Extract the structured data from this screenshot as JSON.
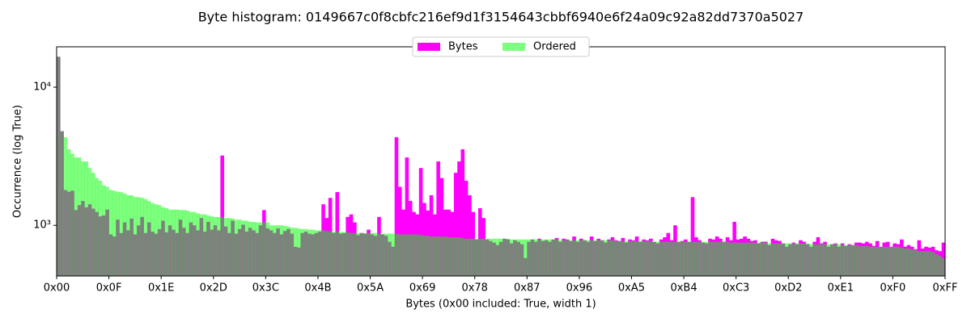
{
  "chart_data": {
    "type": "histogram",
    "title": "Byte histogram: 0149667c0f8cbfc216ef9d1f3154643cbbf6940e6f24a09c92a82dd7370a5027",
    "x_label": "Bytes (0x00 included: True, width 1)",
    "y_label": "Occurrence (log True)",
    "log_y": true,
    "legend": "upper center",
    "xlim": [
      0,
      255
    ],
    "ylim": [
      430,
      19600
    ],
    "xticks": [
      {
        "value": 0,
        "label": "0x00"
      },
      {
        "value": 15,
        "label": "0x0F"
      },
      {
        "value": 30,
        "label": "0x1E"
      },
      {
        "value": 45,
        "label": "0x2D"
      },
      {
        "value": 60,
        "label": "0x3C"
      },
      {
        "value": 75,
        "label": "0x4B"
      },
      {
        "value": 90,
        "label": "0x5A"
      },
      {
        "value": 105,
        "label": "0x69"
      },
      {
        "value": 120,
        "label": "0x78"
      },
      {
        "value": 135,
        "label": "0x87"
      },
      {
        "value": 150,
        "label": "0x96"
      },
      {
        "value": 165,
        "label": "0xA5"
      },
      {
        "value": 180,
        "label": "0xB4"
      },
      {
        "value": 195,
        "label": "0xC3"
      },
      {
        "value": 210,
        "label": "0xD2"
      },
      {
        "value": 225,
        "label": "0xE1"
      },
      {
        "value": 240,
        "label": "0xF0"
      },
      {
        "value": 255,
        "label": "0xFF"
      }
    ],
    "yticks": [
      {
        "value": 1000,
        "label": "10³"
      },
      {
        "value": 10000,
        "label": "10⁴"
      }
    ],
    "bins": [
      0,
      1,
      2,
      3,
      4,
      5,
      6,
      7,
      8,
      9,
      10,
      11,
      12,
      13,
      14,
      15,
      16,
      17,
      18,
      19,
      20,
      21,
      22,
      23,
      24,
      25,
      26,
      27,
      28,
      29,
      30,
      31,
      32,
      33,
      34,
      35,
      36,
      37,
      38,
      39,
      40,
      41,
      42,
      43,
      44,
      45,
      46,
      47,
      48,
      49,
      50,
      51,
      52,
      53,
      54,
      55,
      56,
      57,
      58,
      59,
      60,
      61,
      62,
      63,
      64,
      65,
      66,
      67,
      68,
      69,
      70,
      71,
      72,
      73,
      74,
      75,
      76,
      77,
      78,
      79,
      80,
      81,
      82,
      83,
      84,
      85,
      86,
      87,
      88,
      89,
      90,
      91,
      92,
      93,
      94,
      95,
      96,
      97,
      98,
      99,
      100,
      101,
      102,
      103,
      104,
      105,
      106,
      107,
      108,
      109,
      110,
      111,
      112,
      113,
      114,
      115,
      116,
      117,
      118,
      119,
      120,
      121,
      122,
      123,
      124,
      125,
      126,
      127,
      128,
      129,
      130,
      131,
      132,
      133,
      134,
      135,
      136,
      137,
      138,
      139,
      140,
      141,
      142,
      143,
      144,
      145,
      146,
      147,
      148,
      149,
      150,
      151,
      152,
      153,
      154,
      155,
      156,
      157,
      158,
      159,
      160,
      161,
      162,
      163,
      164,
      165,
      166,
      167,
      168,
      169,
      170,
      171,
      172,
      173,
      174,
      175,
      176,
      177,
      178,
      179,
      180,
      181,
      182,
      183,
      184,
      185,
      186,
      187,
      188,
      189,
      190,
      191,
      192,
      193,
      194,
      195,
      196,
      197,
      198,
      199,
      200,
      201,
      202,
      203,
      204,
      205,
      206,
      207,
      208,
      209,
      210,
      211,
      212,
      213,
      214,
      215,
      216,
      217,
      218,
      219,
      220,
      221,
      222,
      223,
      224,
      225,
      226,
      227,
      228,
      229,
      230,
      231,
      232,
      233,
      234,
      235,
      236,
      237,
      238,
      239,
      240,
      241,
      242,
      243,
      244,
      245,
      246,
      247,
      248,
      249,
      250,
      251,
      252,
      253,
      254,
      255,
      256
    ],
    "series": [
      {
        "name": "Bytes",
        "color": "#ff00ff",
        "opacity": 1,
        "values": [
          16600,
          4800,
          1800,
          1750,
          1780,
          1290,
          1400,
          1500,
          1350,
          1420,
          1320,
          1250,
          1160,
          1180,
          1300,
          860,
          830,
          1100,
          880,
          1050,
          920,
          1120,
          860,
          1000,
          1150,
          880,
          1050,
          900,
          870,
          940,
          1080,
          890,
          1000,
          930,
          880,
          1100,
          960,
          880,
          1050,
          1000,
          920,
          1130,
          900,
          1060,
          930,
          1000,
          920,
          3200,
          980,
          880,
          1080,
          870,
          940,
          1010,
          900,
          960,
          920,
          880,
          1000,
          1290,
          950,
          920,
          880,
          950,
          860,
          910,
          940,
          870,
          700,
          690,
          880,
          900,
          870,
          860,
          880,
          900,
          1420,
          1130,
          1580,
          880,
          1740,
          870,
          880,
          1150,
          1200,
          1050,
          850,
          880,
          870,
          930,
          860,
          840,
          1150,
          860,
          840,
          760,
          700,
          4340,
          1900,
          1300,
          3100,
          1500,
          1250,
          1200,
          2600,
          1450,
          1280,
          1650,
          1200,
          2900,
          2200,
          1300,
          1300,
          1250,
          2400,
          2900,
          3550,
          2100,
          1650,
          1250,
          790,
          1330,
          1130,
          790,
          770,
          750,
          720,
          760,
          800,
          790,
          740,
          780,
          760,
          730,
          580,
          760,
          790,
          760,
          800,
          770,
          780,
          760,
          790,
          810,
          760,
          800,
          790,
          770,
          830,
          760,
          800,
          780,
          760,
          830,
          770,
          800,
          780,
          750,
          790,
          820,
          780,
          770,
          810,
          750,
          790,
          780,
          830,
          760,
          790,
          780,
          800,
          760,
          740,
          790,
          820,
          880,
          780,
          1000,
          760,
          770,
          790,
          760,
          1600,
          820,
          780,
          750,
          740,
          800,
          790,
          830,
          800,
          760,
          820,
          780,
          1060,
          790,
          800,
          830,
          800,
          770,
          780,
          740,
          760,
          760,
          720,
          800,
          780,
          770,
          740,
          700,
          730,
          750,
          730,
          780,
          760,
          730,
          700,
          760,
          820,
          740,
          760,
          700,
          730,
          740,
          700,
          740,
          710,
          730,
          720,
          750,
          750,
          740,
          760,
          740,
          710,
          770,
          700,
          750,
          760,
          700,
          740,
          730,
          790,
          700,
          720,
          700,
          670,
          780,
          680,
          700,
          690,
          700,
          660,
          650,
          750,
          680
        ]
      },
      {
        "name": "Ordered",
        "color": "#00ff00",
        "opacity": 0.5,
        "values": [
          16600,
          4800,
          4340,
          3550,
          3300,
          3100,
          3100,
          2900,
          2900,
          2600,
          2400,
          2200,
          2100,
          1950,
          1900,
          1800,
          1780,
          1750,
          1740,
          1700,
          1650,
          1650,
          1600,
          1600,
          1580,
          1550,
          1500,
          1450,
          1420,
          1400,
          1350,
          1330,
          1300,
          1300,
          1300,
          1290,
          1290,
          1280,
          1250,
          1250,
          1220,
          1200,
          1200,
          1180,
          1160,
          1150,
          1150,
          1150,
          1130,
          1130,
          1120,
          1100,
          1100,
          1080,
          1080,
          1060,
          1060,
          1050,
          1050,
          1050,
          1050,
          1000,
          1000,
          1000,
          1000,
          990,
          980,
          960,
          960,
          950,
          940,
          940,
          930,
          930,
          920,
          920,
          920,
          910,
          900,
          900,
          900,
          900,
          890,
          890,
          880,
          880,
          880,
          880,
          880,
          880,
          880,
          880,
          870,
          870,
          870,
          870,
          870,
          870,
          860,
          860,
          860,
          860,
          860,
          860,
          850,
          840,
          840,
          830,
          830,
          830,
          830,
          830,
          820,
          820,
          820,
          820,
          810,
          800,
          800,
          800,
          800,
          800,
          800,
          800,
          800,
          800,
          800,
          800,
          800,
          800,
          790,
          790,
          790,
          790,
          790,
          790,
          790,
          790,
          790,
          790,
          790,
          790,
          790,
          790,
          780,
          780,
          780,
          780,
          780,
          780,
          780,
          780,
          780,
          780,
          780,
          780,
          780,
          780,
          780,
          780,
          770,
          770,
          770,
          770,
          770,
          770,
          770,
          770,
          770,
          770,
          770,
          760,
          760,
          760,
          760,
          760,
          760,
          760,
          760,
          760,
          760,
          760,
          760,
          760,
          760,
          760,
          760,
          760,
          760,
          760,
          760,
          760,
          760,
          750,
          750,
          750,
          750,
          750,
          750,
          750,
          750,
          750,
          750,
          750,
          740,
          740,
          740,
          740,
          740,
          740,
          740,
          740,
          740,
          740,
          740,
          740,
          730,
          730,
          730,
          730,
          730,
          730,
          730,
          730,
          730,
          720,
          720,
          720,
          720,
          720,
          710,
          710,
          710,
          700,
          700,
          700,
          700,
          700,
          700,
          700,
          700,
          700,
          690,
          680,
          680,
          670,
          660,
          650,
          650,
          650,
          650,
          640,
          620,
          600,
          580,
          575
        ]
      }
    ]
  }
}
